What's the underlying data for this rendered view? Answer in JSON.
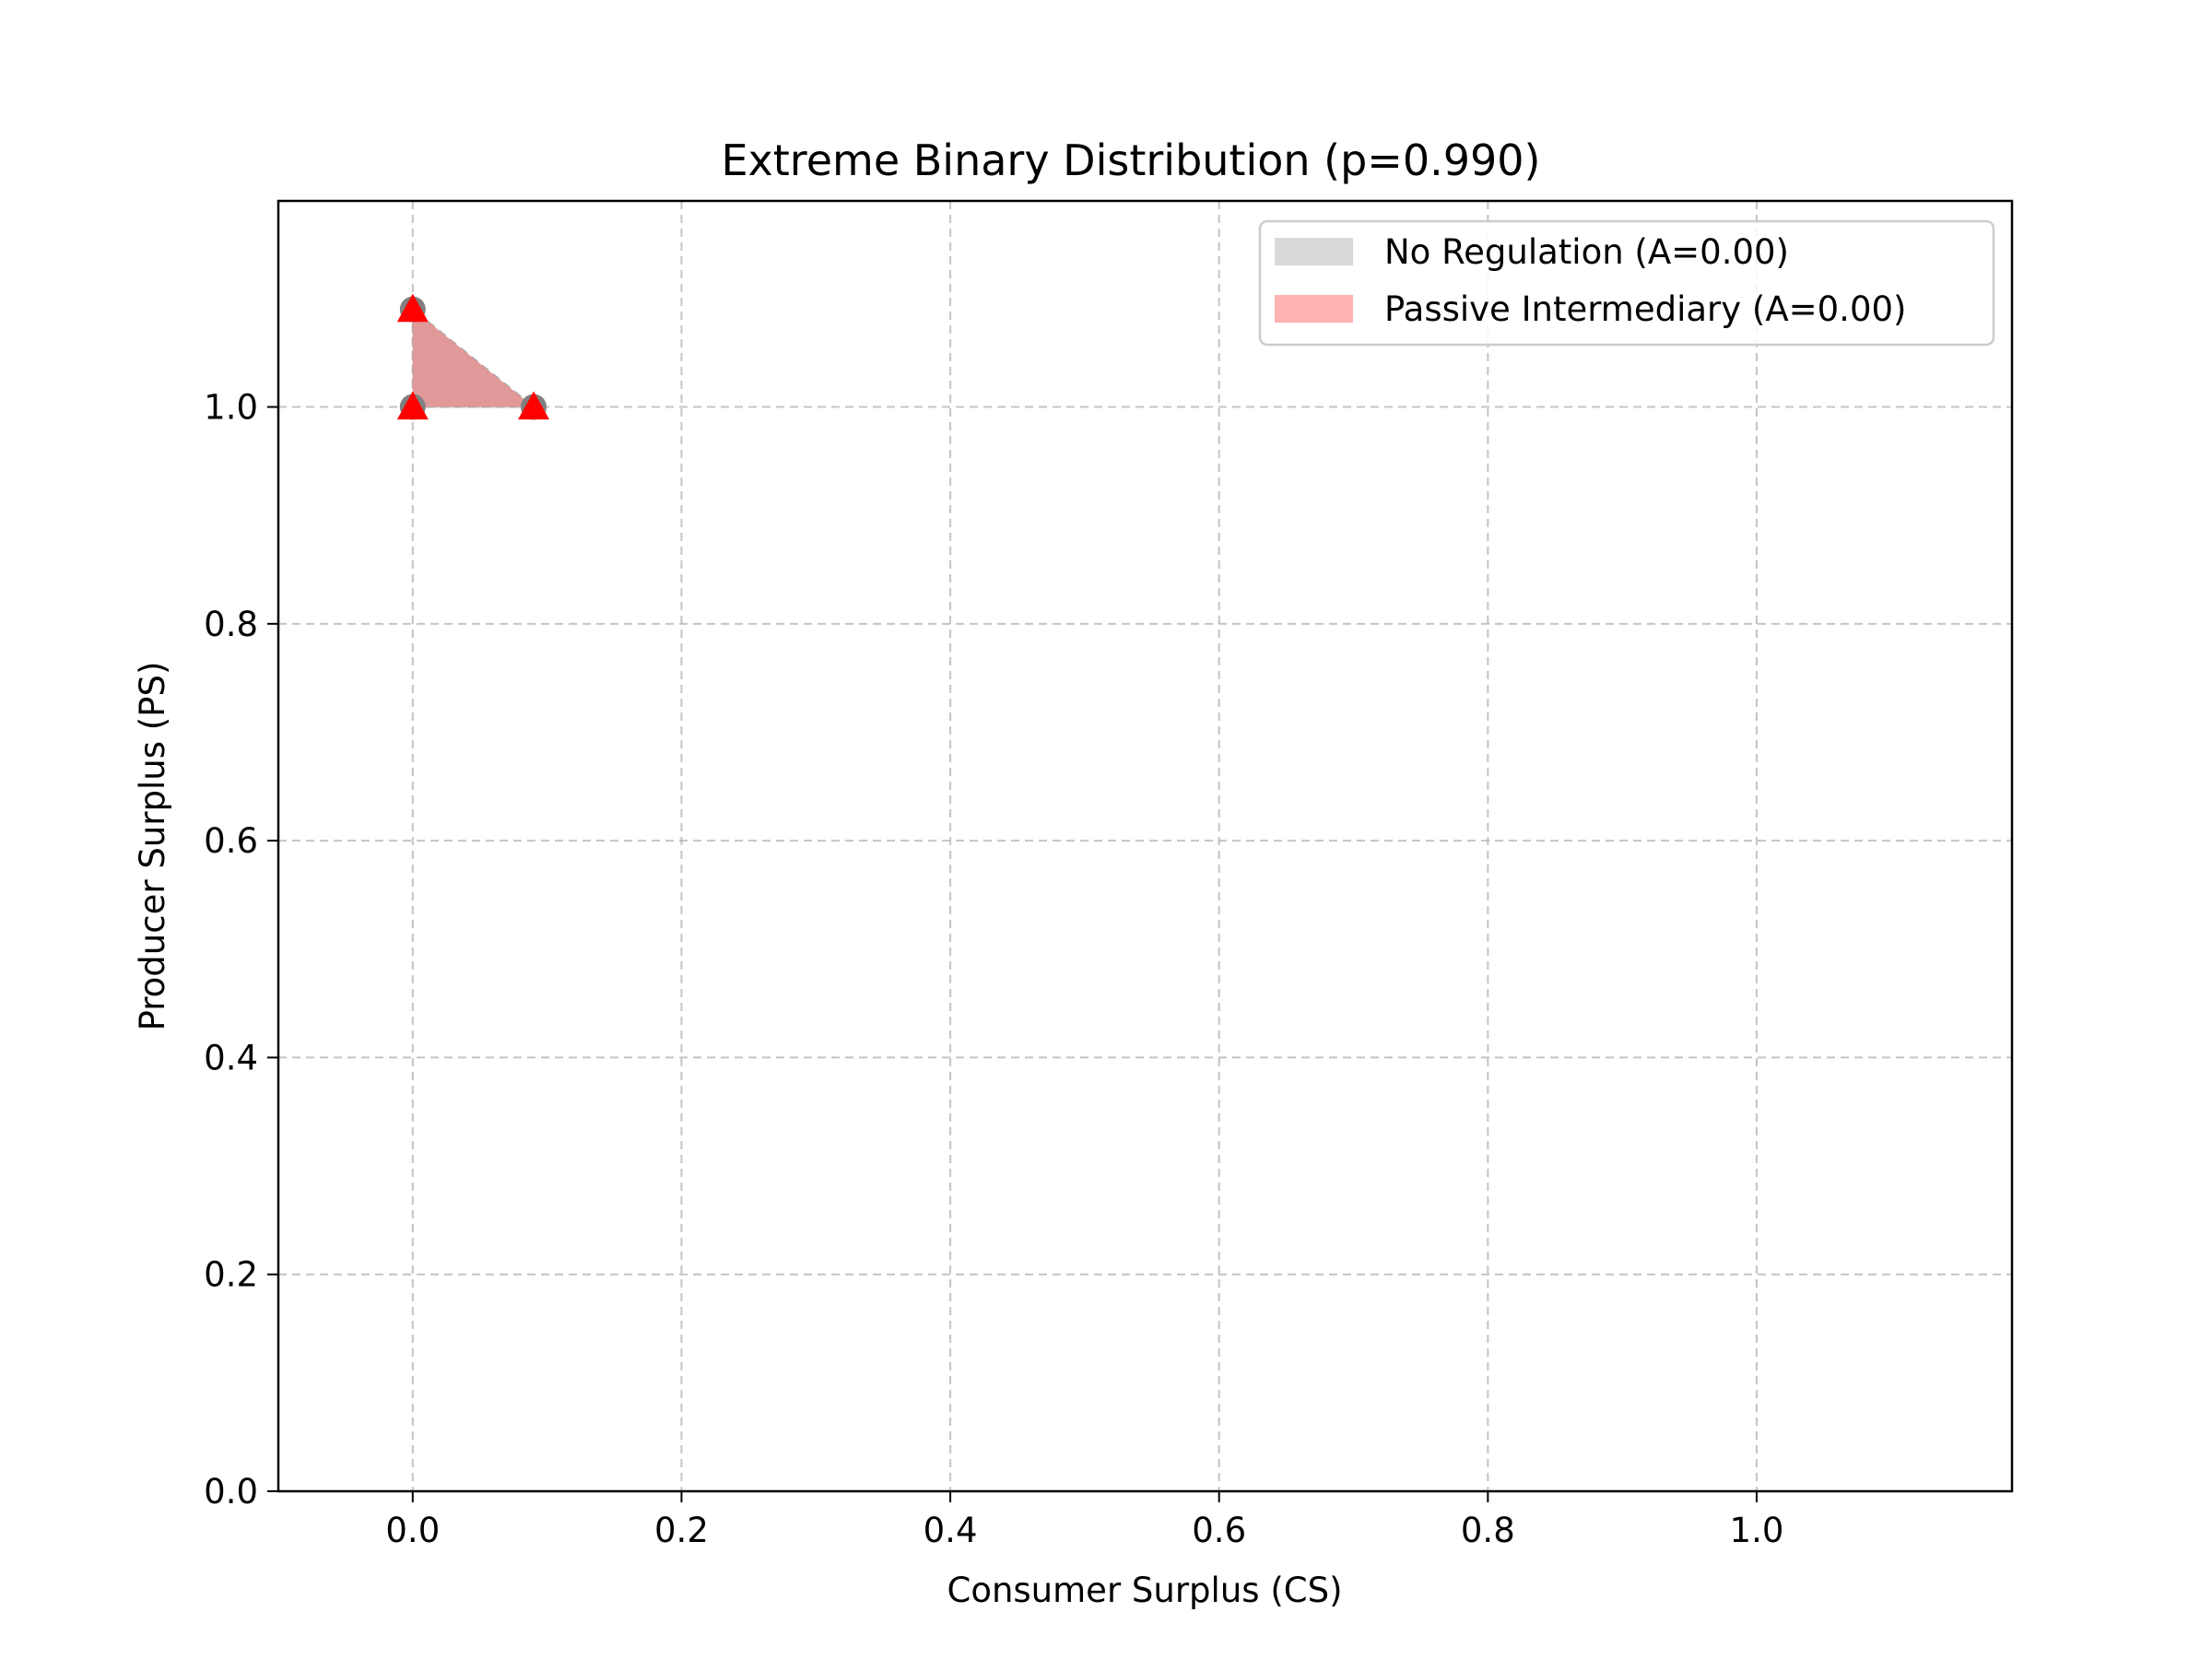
{
  "chart_data": {
    "type": "area",
    "title": "Extreme Binary Distribution (p=0.990)",
    "xlabel": "Consumer Surplus (CS)",
    "ylabel": "Producer Surplus (PS)",
    "xlim": [
      -0.1,
      1.19
    ],
    "ylim": [
      0.0,
      1.19
    ],
    "xticks": [
      0.0,
      0.2,
      0.4,
      0.6,
      0.8,
      1.0
    ],
    "xtick_labels": [
      "0.0",
      "0.2",
      "0.4",
      "0.6",
      "0.8",
      "1.0"
    ],
    "yticks": [
      0.0,
      0.2,
      0.4,
      0.6,
      0.8,
      1.0
    ],
    "ytick_labels": [
      "0.0",
      "0.2",
      "0.4",
      "0.6",
      "0.8",
      "1.0"
    ],
    "grid": true,
    "legend_position": "top-right",
    "series": [
      {
        "name": "No Regulation (A=0.00)",
        "color": "#d9d9d9",
        "marker_color": "#808080",
        "marker": "circle",
        "points": [
          {
            "x": 0.0,
            "y": 1.09
          },
          {
            "x": 0.0,
            "y": 1.0
          },
          {
            "x": 0.09,
            "y": 1.0
          }
        ]
      },
      {
        "name": "Passive Intermediary (A=0.00)",
        "color": "#ffb3b3",
        "fill_color": "#e09898",
        "marker_color": "#ff0000",
        "marker": "triangle",
        "points": [
          {
            "x": 0.0,
            "y": 1.09
          },
          {
            "x": 0.0,
            "y": 1.0
          },
          {
            "x": 0.09,
            "y": 1.0
          }
        ]
      }
    ]
  }
}
